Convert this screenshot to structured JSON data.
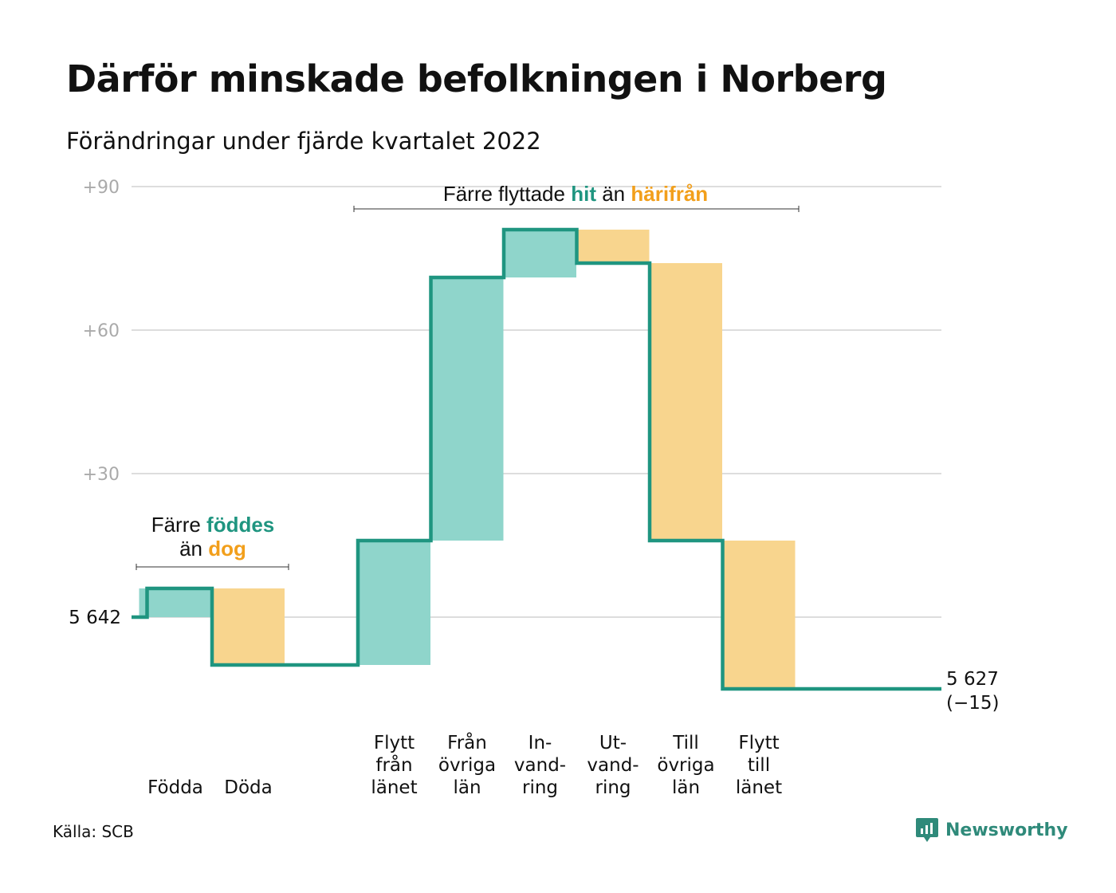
{
  "title": "Därför minskade befolkningen i Norberg",
  "subtitle": "Förändringar under fjärde kvartalet 2022",
  "source": "Källa: SCB",
  "brand": {
    "name": "Newsworthy",
    "icon": "chart-bubble-icon"
  },
  "colors": {
    "increase": "#8fd5cb",
    "decrease": "#f8d58e",
    "line": "#1f9580",
    "grid": "#dddddd",
    "tick": "#aaaaaa",
    "accent_teal": "#1f9580",
    "accent_orange": "#f29f1b"
  },
  "annotations": {
    "births_vs_deaths": {
      "line1_prefix": "Färre ",
      "line1_highlight": "föddes",
      "line2_prefix": "än ",
      "line2_highlight": "dog"
    },
    "migration": {
      "prefix": "Färre flyttade ",
      "highlight1": "hit",
      "middle": " än ",
      "highlight2": "härifrån"
    }
  },
  "chart_data": {
    "type": "waterfall",
    "title": "Därför minskade befolkningen i Norberg",
    "subtitle": "Förändringar under fjärde kvartalet 2022",
    "start_value": 5642,
    "start_label": "5 642",
    "end_label_lines": [
      "5 627",
      "(−15)"
    ],
    "total_change": -15,
    "y_axis_relative_range": [
      -20,
      92
    ],
    "y_ticks": [
      {
        "value": 30,
        "label": "+30"
      },
      {
        "value": 60,
        "label": "+60"
      },
      {
        "value": 90,
        "label": "+90"
      }
    ],
    "grid": true,
    "categories": [
      {
        "label_lines": [
          "Födda"
        ],
        "change": 6,
        "kind": "increase"
      },
      {
        "label_lines": [
          "Döda"
        ],
        "change": -16,
        "kind": "decrease"
      },
      {
        "label_lines": [],
        "change": 0,
        "kind": "gap"
      },
      {
        "label_lines": [
          "Flytt",
          "från",
          "länet"
        ],
        "change": 26,
        "kind": "increase"
      },
      {
        "label_lines": [
          "Från",
          "övriga",
          "län"
        ],
        "change": 55,
        "kind": "increase"
      },
      {
        "label_lines": [
          "In-",
          "vand-",
          "ring"
        ],
        "change": 10,
        "kind": "increase"
      },
      {
        "label_lines": [
          "Ut-",
          "vand-",
          "ring"
        ],
        "change": -7,
        "kind": "decrease"
      },
      {
        "label_lines": [
          "Till",
          "övriga",
          "län"
        ],
        "change": -58,
        "kind": "decrease"
      },
      {
        "label_lines": [
          "Flytt",
          "till",
          "länet"
        ],
        "change": -31,
        "kind": "decrease"
      },
      {
        "label_lines": [],
        "change": 0,
        "kind": "gap"
      }
    ]
  }
}
